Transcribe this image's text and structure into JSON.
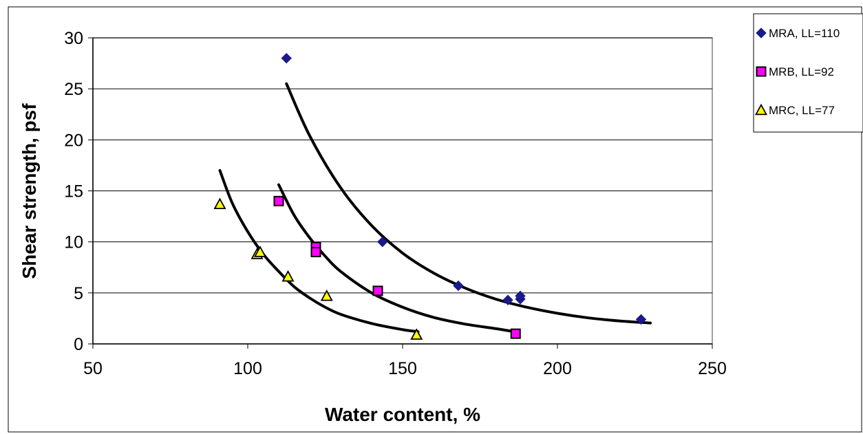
{
  "chart_data": {
    "type": "scatter",
    "title": "",
    "xlabel": "Water content, %",
    "ylabel": "Shear strength, psf",
    "xlim": [
      50,
      250
    ],
    "ylim": [
      0,
      30
    ],
    "xticks": [
      50,
      100,
      150,
      200,
      250
    ],
    "yticks": [
      0,
      5,
      10,
      15,
      20,
      25,
      30
    ],
    "grid": "horizontal major gridlines",
    "legend": "right",
    "series": [
      {
        "name": "MRA, LL=110",
        "marker": "diamond",
        "color": "#1a1a8c",
        "points": [
          {
            "x": 112.5,
            "y": 28.0
          },
          {
            "x": 143.5,
            "y": 10.0
          },
          {
            "x": 168.0,
            "y": 5.7
          },
          {
            "x": 184.0,
            "y": 4.3
          },
          {
            "x": 188.0,
            "y": 4.4
          },
          {
            "x": 188.0,
            "y": 4.7
          },
          {
            "x": 227.0,
            "y": 2.4
          }
        ],
        "trend": {
          "type": "power",
          "points": [
            {
              "x": 112.5,
              "y": 25.5
            },
            {
              "x": 120,
              "y": 20.4
            },
            {
              "x": 130,
              "y": 15.3
            },
            {
              "x": 140,
              "y": 11.6
            },
            {
              "x": 150,
              "y": 8.9
            },
            {
              "x": 160,
              "y": 6.95
            },
            {
              "x": 170,
              "y": 5.5
            },
            {
              "x": 180,
              "y": 4.4
            },
            {
              "x": 190,
              "y": 3.6
            },
            {
              "x": 200,
              "y": 3.0
            },
            {
              "x": 210,
              "y": 2.55
            },
            {
              "x": 220,
              "y": 2.25
            },
            {
              "x": 230,
              "y": 2.05
            }
          ]
        }
      },
      {
        "name": "MRB, LL=92",
        "marker": "square",
        "color": "#ff00ff",
        "points": [
          {
            "x": 110.0,
            "y": 14.0
          },
          {
            "x": 122.0,
            "y": 9.5
          },
          {
            "x": 122.0,
            "y": 9.0
          },
          {
            "x": 142.0,
            "y": 5.2
          },
          {
            "x": 186.5,
            "y": 1.0
          }
        ],
        "trend": {
          "type": "power",
          "points": [
            {
              "x": 110,
              "y": 15.6
            },
            {
              "x": 115,
              "y": 12.6
            },
            {
              "x": 120,
              "y": 10.4
            },
            {
              "x": 125,
              "y": 8.6
            },
            {
              "x": 130,
              "y": 7.1
            },
            {
              "x": 140,
              "y": 5.0
            },
            {
              "x": 150,
              "y": 3.6
            },
            {
              "x": 160,
              "y": 2.6
            },
            {
              "x": 170,
              "y": 1.95
            },
            {
              "x": 180,
              "y": 1.5
            },
            {
              "x": 187,
              "y": 1.15
            }
          ]
        }
      },
      {
        "name": "MRC, LL=77",
        "marker": "triangle",
        "color": "#ffff00",
        "points": [
          {
            "x": 91.0,
            "y": 13.7
          },
          {
            "x": 103.0,
            "y": 8.8
          },
          {
            "x": 104.0,
            "y": 9.0
          },
          {
            "x": 113.0,
            "y": 6.6
          },
          {
            "x": 125.5,
            "y": 4.7
          },
          {
            "x": 154.5,
            "y": 0.9
          }
        ],
        "trend": {
          "type": "power",
          "points": [
            {
              "x": 91,
              "y": 17.0
            },
            {
              "x": 95,
              "y": 13.8
            },
            {
              "x": 100,
              "y": 11.0
            },
            {
              "x": 105,
              "y": 8.8
            },
            {
              "x": 110,
              "y": 7.1
            },
            {
              "x": 115,
              "y": 5.6
            },
            {
              "x": 120,
              "y": 4.5
            },
            {
              "x": 125,
              "y": 3.6
            },
            {
              "x": 130,
              "y": 2.9
            },
            {
              "x": 140,
              "y": 2.0
            },
            {
              "x": 150,
              "y": 1.4
            },
            {
              "x": 155,
              "y": 1.2
            }
          ]
        }
      }
    ]
  }
}
